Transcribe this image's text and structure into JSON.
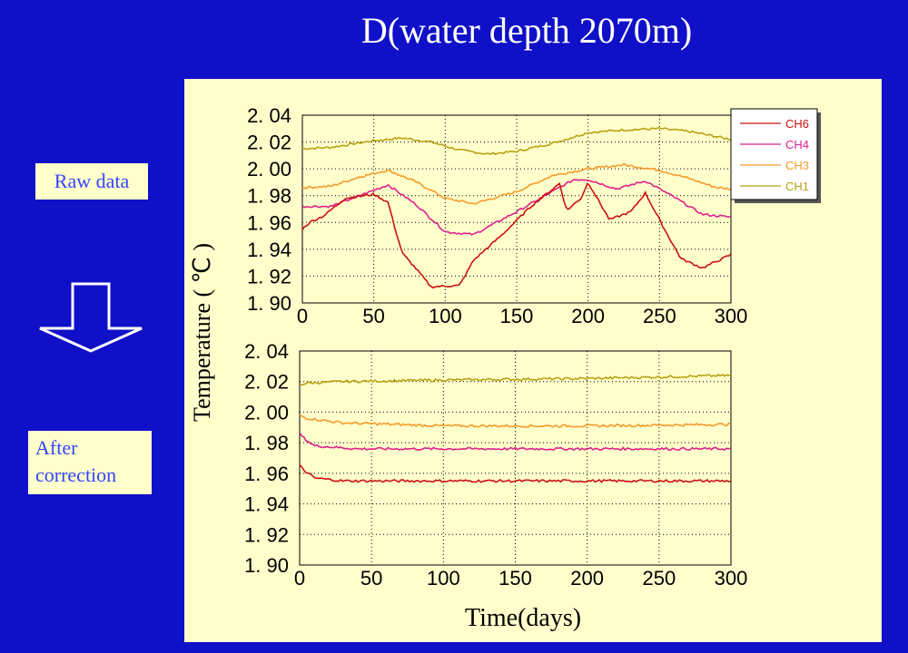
{
  "slide": {
    "title": "D(water depth 2070m)",
    "raw_label": "Raw data",
    "after_label_line1": "After",
    "after_label_line2": "correction"
  },
  "colors": {
    "background": "#1010c8",
    "panel": "#ffffcc",
    "CH6": "#cc1111",
    "CH4": "#e0208a",
    "CH3": "#f59a2a",
    "CH1": "#b8a214"
  },
  "chart_data": [
    {
      "type": "line",
      "name": "raw",
      "ylabel": "Temperature ( ℃ )",
      "xlabel": "Time(days)",
      "xlim": [
        0,
        300
      ],
      "ylim": [
        1.9,
        2.04
      ],
      "x_ticks": [
        "0",
        "50",
        "100",
        "150",
        "200",
        "250",
        "300"
      ],
      "y_ticks": [
        "2. 04",
        "2. 02",
        "2. 00",
        "1. 98",
        "1. 96",
        "1. 94",
        "1. 92",
        "1. 90"
      ],
      "legend": [
        "CH6",
        "CH4",
        "CH3",
        "CH1"
      ],
      "legend_position": "top-right",
      "series": [
        {
          "name": "CH1",
          "x": [
            0,
            20,
            50,
            70,
            90,
            110,
            130,
            150,
            175,
            200,
            225,
            250,
            270,
            290,
            300
          ],
          "values": [
            2.015,
            2.016,
            2.021,
            2.023,
            2.02,
            2.014,
            2.011,
            2.013,
            2.019,
            2.027,
            2.029,
            2.03,
            2.028,
            2.024,
            2.022
          ]
        },
        {
          "name": "CH3",
          "x": [
            0,
            20,
            40,
            60,
            80,
            100,
            120,
            150,
            175,
            200,
            225,
            250,
            270,
            290,
            300
          ],
          "values": [
            1.986,
            1.987,
            1.994,
            1.999,
            1.99,
            1.978,
            1.974,
            1.983,
            1.995,
            2.0,
            2.003,
            1.999,
            1.993,
            1.986,
            1.985
          ]
        },
        {
          "name": "CH4",
          "x": [
            0,
            20,
            40,
            60,
            80,
            100,
            120,
            150,
            175,
            190,
            200,
            220,
            240,
            260,
            280,
            300
          ],
          "values": [
            1.972,
            1.972,
            1.98,
            1.988,
            1.973,
            1.953,
            1.951,
            1.968,
            1.983,
            1.992,
            1.992,
            1.985,
            1.991,
            1.979,
            1.966,
            1.964
          ]
        },
        {
          "name": "CH6",
          "x": [
            0,
            5,
            15,
            30,
            50,
            60,
            65,
            70,
            80,
            90,
            110,
            120,
            140,
            160,
            180,
            185,
            195,
            200,
            215,
            230,
            240,
            255,
            265,
            280,
            300
          ],
          "values": [
            1.955,
            1.96,
            1.965,
            1.978,
            1.981,
            1.975,
            1.955,
            1.937,
            1.925,
            1.912,
            1.913,
            1.932,
            1.951,
            1.972,
            1.989,
            1.969,
            1.978,
            1.99,
            1.962,
            1.968,
            1.982,
            1.952,
            1.933,
            1.926,
            1.936
          ]
        }
      ]
    },
    {
      "type": "line",
      "name": "corrected",
      "xlim": [
        0,
        300
      ],
      "ylim": [
        1.9,
        2.04
      ],
      "x_ticks": [
        "0",
        "50",
        "100",
        "150",
        "200",
        "250",
        "300"
      ],
      "y_ticks": [
        "2. 04",
        "2. 02",
        "2. 00",
        "1. 98",
        "1. 96",
        "1. 94",
        "1. 92",
        "1. 90"
      ],
      "series": [
        {
          "name": "CH1",
          "x": [
            0,
            5,
            30,
            100,
            200,
            300
          ],
          "values": [
            2.018,
            2.019,
            2.02,
            2.021,
            2.022,
            2.024
          ]
        },
        {
          "name": "CH3",
          "x": [
            0,
            5,
            30,
            100,
            200,
            300
          ],
          "values": [
            1.998,
            1.996,
            1.993,
            1.991,
            1.991,
            1.992
          ]
        },
        {
          "name": "CH4",
          "x": [
            0,
            3,
            10,
            40,
            100,
            200,
            300
          ],
          "values": [
            1.986,
            1.983,
            1.978,
            1.976,
            1.976,
            1.976,
            1.976
          ]
        },
        {
          "name": "CH6",
          "x": [
            0,
            3,
            10,
            30,
            100,
            200,
            300
          ],
          "values": [
            1.965,
            1.962,
            1.957,
            1.955,
            1.955,
            1.955,
            1.955
          ]
        }
      ]
    }
  ]
}
